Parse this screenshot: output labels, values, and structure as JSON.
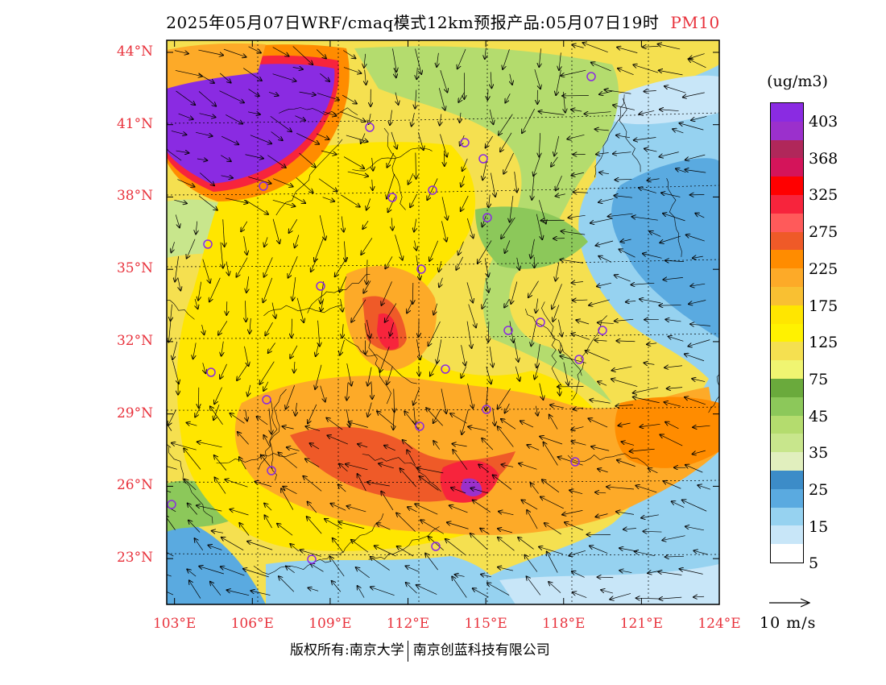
{
  "title": {
    "text": "2025年05月07日WRF/cmaq模式12km预报产品:05月07日19时",
    "pollutant": "PM10"
  },
  "axes": {
    "lat_labels": [
      "44°N",
      "41°N",
      "38°N",
      "35°N",
      "32°N",
      "29°N",
      "26°N",
      "23°N"
    ],
    "lat_values": [
      44,
      41,
      38,
      35,
      32,
      29,
      26,
      23
    ],
    "lon_labels": [
      "103°E",
      "106°E",
      "109°E",
      "112°E",
      "115°E",
      "118°E",
      "121°E",
      "124°E"
    ],
    "lon_values": [
      103,
      106,
      109,
      112,
      115,
      118,
      121,
      124
    ],
    "lat_range": [
      21.1,
      44.5
    ],
    "lon_range": [
      102.7,
      124.0
    ]
  },
  "legend": {
    "unit": "(ug/m3)",
    "colors": [
      "#8a2be2",
      "#9b30cc",
      "#b0275a",
      "#d4145a",
      "#ff0000",
      "#f7243c",
      "#ff5a5a",
      "#ef5a28",
      "#ff8c00",
      "#fdaa28",
      "#f9c032",
      "#ffe600",
      "#fff200",
      "#f5e050",
      "#f0f571",
      "#6aaa3c",
      "#8cc85a",
      "#b4dc6e",
      "#c8e68c",
      "#e1efbe",
      "#3c8cc8",
      "#5aaae0",
      "#96d2f0",
      "#c8e6f8",
      "#ffffff"
    ],
    "labels": [
      "403",
      "368",
      "325",
      "275",
      "225",
      "175",
      "125",
      "75",
      "45",
      "35",
      "25",
      "15",
      "5"
    ]
  },
  "vector_reference": "10 m/s",
  "footer": {
    "left": "版权所有:南京大学",
    "right": "南京创蓝科技有限公司"
  },
  "stations_icon": "circle-marker-icon"
}
